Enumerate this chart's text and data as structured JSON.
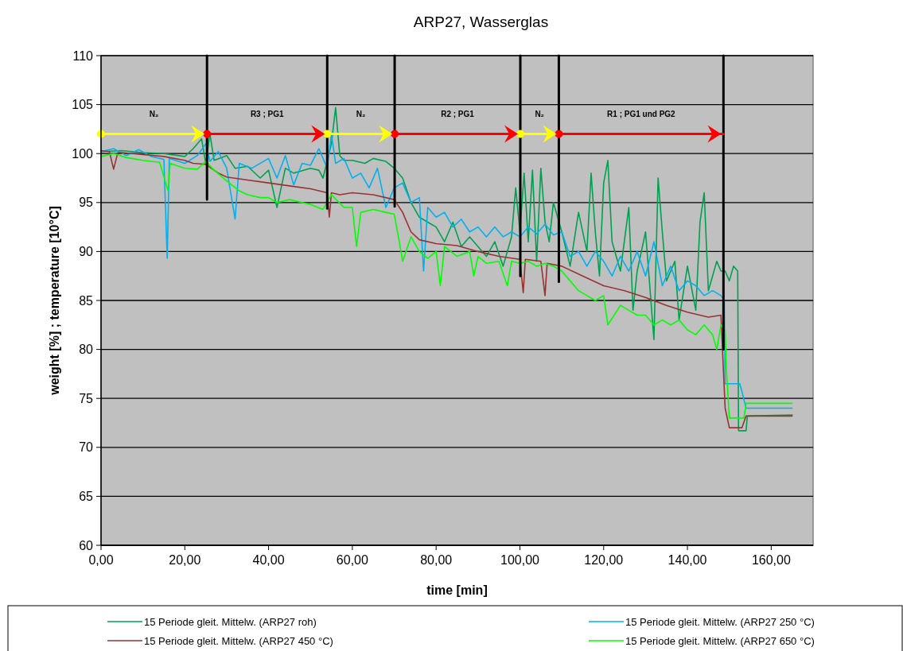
{
  "chart_data": {
    "type": "line",
    "title": "ARP27, Wasserglas",
    "xlabel": "time [min]",
    "ylabel": "weight [%] ; temperature [10°C]",
    "xlim": [
      0,
      170
    ],
    "xticks": [
      {
        "value": 0,
        "label": "0,00"
      },
      {
        "value": 20,
        "label": "20,00"
      },
      {
        "value": 40,
        "label": "40,00"
      },
      {
        "value": 60,
        "label": "60,00"
      },
      {
        "value": 80,
        "label": "80,00"
      },
      {
        "value": 100,
        "label": "100,00"
      },
      {
        "value": 120,
        "label": "120,00"
      },
      {
        "value": 140,
        "label": "140,00"
      },
      {
        "value": 160,
        "label": "160,00"
      }
    ],
    "ylim": [
      60,
      110
    ],
    "yticks": [
      60,
      65,
      70,
      75,
      80,
      85,
      90,
      95,
      100,
      105,
      110
    ],
    "grid": "y",
    "legend": "bottom",
    "annotations": [
      "N₂",
      "R3 ; PG1",
      "N₂",
      "R2 ; PG1",
      "N₂",
      "R1 ; PG1 und PG2"
    ],
    "series": [
      {
        "name": "15 Periode gleit. Mittelw. (ARP27 roh)",
        "color": "#00a050",
        "x": [
          0,
          5,
          10,
          15,
          20,
          22,
          24,
          25,
          26,
          27,
          30,
          32,
          35,
          38,
          40,
          42,
          44,
          46,
          50,
          52,
          53,
          55,
          56,
          57,
          58,
          60,
          63,
          65,
          68,
          70,
          72,
          74,
          76,
          78,
          80,
          82,
          84,
          86,
          88,
          90,
          92,
          94,
          96,
          98,
          99,
          100,
          101,
          102,
          103,
          104,
          105,
          106,
          107,
          108,
          110,
          112,
          114,
          116,
          117,
          118,
          119,
          120,
          121,
          122,
          124,
          126,
          127,
          128,
          130,
          132,
          133,
          134,
          135,
          137,
          138,
          140,
          142,
          143,
          144,
          145,
          147,
          148,
          149,
          150,
          151,
          152,
          152.2,
          154,
          154.3,
          165
        ],
        "values": [
          100.2,
          100.3,
          100.1,
          100.0,
          99.7,
          100.5,
          101.5,
          99,
          102,
          99.3,
          99.8,
          98.5,
          98.7,
          97.5,
          98.3,
          94.5,
          98.5,
          98.0,
          98.5,
          98.3,
          97.5,
          101,
          104.7,
          99.8,
          99.3,
          99.3,
          99,
          99.5,
          99.2,
          98.5,
          97.5,
          95,
          93.5,
          93,
          92.5,
          91,
          93,
          90.5,
          91.5,
          90.5,
          89.5,
          91,
          88.5,
          91.5,
          96.5,
          92,
          98,
          91,
          98.3,
          89,
          98.5,
          93,
          91,
          95,
          92,
          88.5,
          94,
          90,
          98,
          92,
          87.5,
          97,
          99.3,
          91,
          88,
          94.5,
          84,
          88,
          92,
          81,
          97.5,
          92,
          87,
          89,
          83,
          88.5,
          84,
          93,
          96,
          86,
          89,
          88,
          88,
          87,
          88.5,
          88,
          71.7,
          71.7,
          73.2,
          73.3
        ]
      },
      {
        "name": "15 Periode gleit. Mittelw. (ARP27 250 °C)",
        "color": "#00b0f0",
        "x": [
          0,
          3,
          6,
          9,
          12,
          15,
          15.8,
          16.3,
          20,
          23,
          25,
          26,
          28,
          30,
          32,
          33,
          36,
          40,
          42,
          44,
          46,
          48,
          50,
          52,
          54,
          55,
          56,
          58,
          60,
          62,
          64,
          66,
          68,
          70,
          72,
          74,
          76,
          77,
          78,
          80,
          82,
          84,
          86,
          88,
          90,
          92,
          94,
          96,
          98,
          100,
          102,
          104,
          106,
          108,
          110,
          112,
          114,
          116,
          118,
          120,
          122,
          124,
          126,
          128,
          130,
          132,
          134,
          136,
          138,
          140,
          142,
          144,
          146,
          148,
          148.8,
          149,
          152.5,
          153,
          154,
          165
        ],
        "values": [
          100.2,
          100.5,
          99.8,
          100.4,
          99.7,
          99.4,
          89.3,
          99.5,
          99.0,
          99.8,
          101,
          99.2,
          100.2,
          98.5,
          93.3,
          99,
          98.5,
          99.5,
          97.5,
          99.8,
          96.8,
          99,
          98.8,
          100.5,
          98.5,
          102,
          99,
          99.5,
          97.5,
          98,
          96.5,
          98.5,
          94.5,
          96.5,
          97,
          95,
          95.5,
          88,
          94.5,
          93.5,
          94,
          92.5,
          93.3,
          92,
          92.5,
          91.5,
          92.5,
          91.5,
          92,
          91.5,
          92.5,
          91.8,
          92.8,
          91.7,
          92,
          89.5,
          90,
          88.5,
          90,
          89,
          87.5,
          89.5,
          88,
          90,
          87.5,
          91,
          86.5,
          88.5,
          86,
          87,
          86.5,
          85.5,
          86,
          85.5,
          85,
          76.5,
          76.5,
          75.7,
          74,
          74
        ]
      },
      {
        "name": "15 Periode gleit. Mittelw. (ARP27 450 °C)",
        "color": "#993333",
        "x": [
          0,
          2,
          3,
          4,
          5,
          10,
          15,
          20,
          22,
          25,
          28,
          30,
          35,
          40,
          45,
          50,
          54,
          54.5,
          55,
          57,
          60,
          65,
          70,
          72,
          74,
          76,
          80,
          85,
          90,
          95,
          100,
          100.8,
          101.3,
          105,
          106,
          106.5,
          110,
          115,
          120,
          125,
          130,
          135,
          140,
          145,
          148,
          149,
          150,
          153,
          154,
          165
        ],
        "values": [
          100.3,
          100.2,
          98.4,
          100.1,
          100.1,
          99.9,
          99.7,
          99.3,
          99.0,
          98.9,
          98,
          97.6,
          97.3,
          97.0,
          96.7,
          96.4,
          96.0,
          93.5,
          96.0,
          95.8,
          96.0,
          95.8,
          95.3,
          94.0,
          92,
          91.2,
          90.8,
          90.6,
          90.0,
          89.5,
          89.2,
          85.8,
          89.2,
          89.0,
          85.5,
          88.8,
          88.5,
          87.5,
          86.5,
          86.0,
          85.3,
          84.5,
          83.8,
          83.3,
          83.5,
          74,
          72,
          72,
          73.2,
          73.2
        ]
      },
      {
        "name": "15 Periode gleit. Mittelw. (ARP27 650 °C)",
        "color": "#00ff00",
        "x": [
          0,
          3,
          6,
          10,
          14,
          16,
          16.5,
          20,
          23,
          25,
          27,
          30,
          33,
          35,
          38,
          40,
          42,
          45,
          50,
          53,
          55,
          58,
          60,
          61,
          62,
          65,
          68,
          70,
          71,
          72,
          74,
          76,
          78,
          80,
          81,
          82,
          85,
          88,
          89,
          90,
          92,
          95,
          97,
          98,
          100,
          102,
          104,
          106,
          108,
          110,
          112,
          114,
          116,
          118,
          120,
          121,
          124,
          126,
          128,
          130,
          132,
          134,
          136,
          138,
          140,
          142,
          144,
          146,
          147,
          148,
          149,
          149.3,
          150,
          153.5,
          154,
          165
        ],
        "values": [
          99.7,
          100,
          99.6,
          99.3,
          99.1,
          96.2,
          99.0,
          98.5,
          98.4,
          99.2,
          98.3,
          97.2,
          96.2,
          95.8,
          95.5,
          95.5,
          95,
          95.3,
          94.8,
          94.3,
          95.8,
          94.5,
          94.5,
          90.5,
          94,
          94.3,
          94.0,
          93.8,
          91.5,
          89.0,
          91.5,
          90,
          89.3,
          90,
          86.5,
          90.5,
          89.5,
          90,
          87.5,
          89.5,
          88.8,
          89,
          86.5,
          89,
          88.8,
          89,
          88.5,
          88.8,
          88.5,
          88,
          87,
          86,
          85.5,
          85,
          85.5,
          82.5,
          84.5,
          84,
          83.5,
          83.5,
          82.5,
          83,
          82.5,
          83,
          82,
          81.5,
          82.5,
          81.5,
          80,
          82.5,
          82,
          78,
          73,
          73,
          74.5,
          74.5
        ]
      },
      {
        "color": "#000000",
        "x": [
          25.3,
          25.3
        ],
        "values": [
          110,
          95.3
        ]
      },
      {
        "color": "#000000",
        "x": [
          54,
          54
        ],
        "values": [
          110,
          94.4
        ]
      },
      {
        "color": "#000000",
        "x": [
          70.1,
          70.1
        ],
        "values": [
          110,
          94.6
        ]
      },
      {
        "color": "#000000",
        "x": [
          100.1,
          100.1
        ],
        "values": [
          110,
          87.5
        ]
      },
      {
        "color": "#000000",
        "x": [
          109.3,
          109.3
        ],
        "values": [
          110,
          86.9
        ]
      },
      {
        "color": "#000000",
        "x": [
          148.6,
          148.6
        ],
        "values": [
          110,
          80
        ]
      },
      {
        "color": "#ffff00",
        "marker": "circle",
        "x": [
          0,
          25.3
        ],
        "values": [
          102,
          102
        ]
      },
      {
        "color": "#ff0000",
        "marker": "circle",
        "x": [
          25.3,
          54
        ],
        "values": [
          102,
          102
        ]
      },
      {
        "color": "#ffff00",
        "marker": "circle",
        "x": [
          54,
          70.1
        ],
        "values": [
          102,
          102
        ]
      },
      {
        "color": "#ff0000",
        "marker": "circle",
        "x": [
          70.1,
          100.1
        ],
        "values": [
          102,
          102
        ]
      },
      {
        "color": "#ffff00",
        "marker": "circle",
        "x": [
          100.1,
          109.3
        ],
        "values": [
          102,
          102
        ]
      },
      {
        "color": "#ff0000",
        "marker": "circle",
        "x": [
          109.3,
          148.6
        ],
        "values": [
          102,
          102
        ]
      }
    ]
  }
}
